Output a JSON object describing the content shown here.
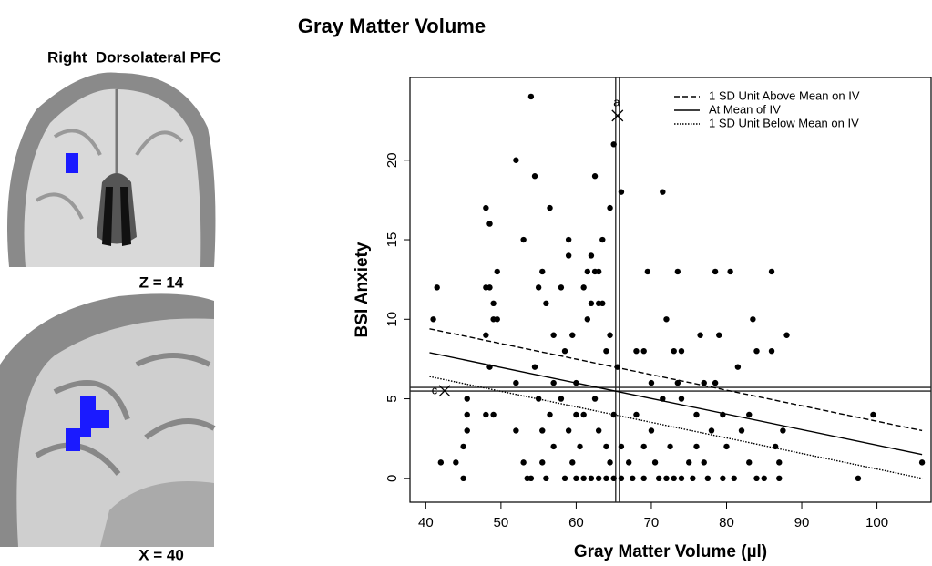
{
  "title": "Gray Matter Volume",
  "panel_title": "Right  Dorsolateral PFC",
  "images": [
    {
      "label": "Z = 14"
    },
    {
      "label": "X = 40"
    }
  ],
  "chart_data": {
    "type": "scatter",
    "x_label": "Gray Matter Volume (µl)",
    "y_label": "BSI Anxiety",
    "xlim": [
      37.9,
      107.2
    ],
    "ylim": [
      -1.5,
      25.2
    ],
    "xticks": [
      40,
      50,
      60,
      70,
      80,
      90,
      100
    ],
    "yticks": [
      0,
      5,
      10,
      15,
      20
    ],
    "vline": 65.5,
    "hline": 5.6,
    "legend": "top-right",
    "series": [
      {
        "color": "#000000",
        "x": [
          41,
          41.5,
          42,
          44,
          45,
          45.5,
          45.5,
          45.5,
          45,
          48,
          48,
          48.5,
          48,
          48.5,
          48.5,
          48,
          49,
          49,
          49.5,
          49,
          49.5,
          52,
          52,
          52,
          53,
          53,
          53.5,
          54,
          54,
          54.5,
          54.5,
          55,
          55,
          55.5,
          55.5,
          55.5,
          56,
          56,
          56.5,
          56.5,
          57,
          57,
          57,
          58,
          58,
          58.5,
          58.5,
          59,
          59,
          59,
          59.5,
          59.5,
          60,
          60,
          60,
          60.5,
          61,
          61,
          61,
          61.5,
          61.5,
          62,
          62,
          62,
          62.5,
          62.5,
          62.5,
          63,
          63,
          63,
          63,
          63.5,
          63.5,
          64,
          64,
          64,
          64.5,
          64.5,
          64.5,
          65,
          65,
          65,
          65.5,
          66,
          66,
          66,
          67,
          67.5,
          68,
          68,
          69,
          69,
          69,
          69.5,
          70,
          70,
          70.5,
          71,
          71.5,
          71.5,
          72,
          72,
          72.5,
          73,
          73,
          73.5,
          73.5,
          74,
          74,
          74,
          75,
          75.5,
          76,
          76,
          76.5,
          77,
          77,
          77.5,
          78,
          78.5,
          78.5,
          79,
          79.5,
          79.5,
          80,
          80.5,
          81,
          81.5,
          82,
          83,
          83,
          83.5,
          84,
          84,
          85,
          86,
          86,
          86.5,
          87,
          87,
          87.5,
          88,
          97.5,
          99.5,
          106
        ],
        "values": [
          10,
          12,
          1,
          1,
          2,
          3,
          4,
          5,
          0,
          9,
          17,
          16,
          12,
          12,
          7,
          4,
          4,
          11,
          13,
          10,
          10,
          20,
          6,
          3,
          15,
          1,
          0,
          24,
          0,
          19,
          7,
          12,
          5,
          13,
          3,
          1,
          0,
          11,
          17,
          4,
          9,
          2,
          6,
          5,
          12,
          8,
          0,
          15,
          14,
          3,
          9,
          1,
          6,
          4,
          0,
          2,
          12,
          4,
          0,
          13,
          10,
          14,
          11,
          0,
          13,
          19,
          5,
          13,
          11,
          3,
          0,
          15,
          11,
          8,
          2,
          0,
          17,
          9,
          1,
          21,
          4,
          0,
          7,
          18,
          2,
          0,
          1,
          0,
          8,
          4,
          8,
          2,
          0,
          13,
          6,
          3,
          1,
          0,
          18,
          5,
          10,
          0,
          2,
          8,
          0,
          13,
          6,
          8,
          5,
          0,
          1,
          0,
          4,
          2,
          9,
          6,
          1,
          0,
          3,
          13,
          6,
          9,
          4,
          0,
          2,
          13,
          0,
          7,
          3,
          4,
          1,
          10,
          8,
          0,
          0,
          13,
          8,
          2,
          1,
          0,
          3,
          9,
          0,
          4,
          1
        ]
      },
      {
        "name": "1 SD Unit Above Mean on IV",
        "style": "dashed",
        "color": "#000000",
        "x": [
          40.5,
          106
        ],
        "values": [
          9.4,
          3.0
        ]
      },
      {
        "name": "At Mean of IV",
        "style": "solid",
        "color": "#000000",
        "x": [
          40.5,
          106
        ],
        "values": [
          7.9,
          1.5
        ]
      },
      {
        "name": "1 SD Unit Below Mean on IV",
        "style": "dotted",
        "color": "#000000",
        "x": [
          40.5,
          106
        ],
        "values": [
          6.4,
          0.0
        ]
      }
    ],
    "annotations": [
      {
        "text": "a",
        "x": 65.5,
        "y": 22.8
      },
      {
        "text": "c",
        "x": 42.5,
        "y": 5.5
      }
    ]
  }
}
